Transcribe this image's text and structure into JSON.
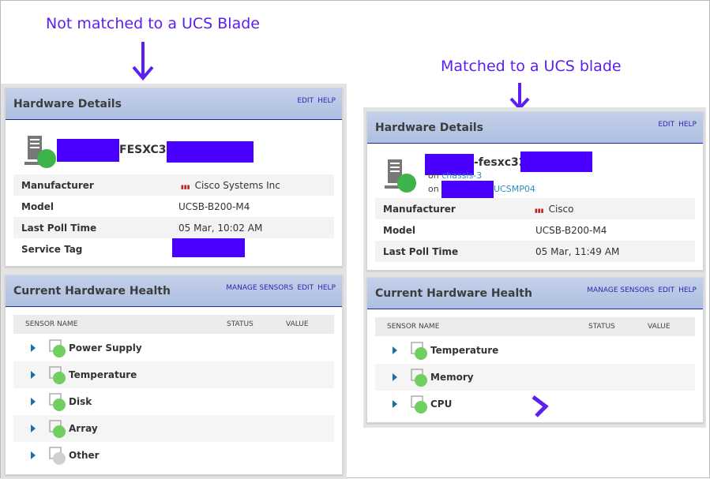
{
  "annotations": {
    "left": "Not matched to a UCS Blade",
    "right": "Matched to a UCS blade"
  },
  "colors": {
    "annotation": "#5b1ff0",
    "redaction": "#4a00ff",
    "status_up": "#3cb44b",
    "status_unknown": "#d0d0d0",
    "link": "#2a2ab0"
  },
  "left": {
    "details": {
      "title": "Hardware Details",
      "links": [
        "EDIT",
        "HELP"
      ],
      "node_name_visible": "FESXC31.",
      "rows": [
        {
          "label": "Manufacturer",
          "value": "Cisco Systems Inc",
          "icon": "cisco-logo-icon"
        },
        {
          "label": "Model",
          "value": "UCSB-B200-M4"
        },
        {
          "label": "Last Poll Time",
          "value": "05 Mar, 10:02 AM"
        },
        {
          "label": "Service Tag",
          "value": ""
        }
      ]
    },
    "health": {
      "title": "Current Hardware Health",
      "links": [
        "MANAGE SENSORS",
        "EDIT",
        "HELP"
      ],
      "columns": [
        "SENSOR NAME",
        "STATUS",
        "VALUE"
      ],
      "sensors": [
        {
          "name": "Power Supply",
          "icon": "power-supply-icon",
          "status": "up"
        },
        {
          "name": "Temperature",
          "icon": "thermometer-icon",
          "status": "up"
        },
        {
          "name": "Disk",
          "icon": "disk-icon",
          "status": "up"
        },
        {
          "name": "Array",
          "icon": "array-icon",
          "status": "up"
        },
        {
          "name": "Other",
          "icon": "heart-monitor-icon",
          "status": "unknown"
        }
      ]
    }
  },
  "right": {
    "details": {
      "title": "Hardware Details",
      "links": [
        "EDIT",
        "HELP"
      ],
      "node_name_visible": "-fesxc32",
      "on_prefix": "on",
      "chassis": "chassis-3",
      "manager_visible": "UCSMP04",
      "rows": [
        {
          "label": "Manufacturer",
          "value": "Cisco",
          "icon": "cisco-logo-icon"
        },
        {
          "label": "Model",
          "value": "UCSB-B200-M4"
        },
        {
          "label": "Last Poll Time",
          "value": "05 Mar, 11:49 AM"
        }
      ]
    },
    "health": {
      "title": "Current Hardware Health",
      "links": [
        "MANAGE SENSORS",
        "EDIT",
        "HELP"
      ],
      "columns": [
        "SENSOR NAME",
        "STATUS",
        "VALUE"
      ],
      "sensors": [
        {
          "name": "Temperature",
          "icon": "thermometer-icon",
          "status": "up"
        },
        {
          "name": "Memory",
          "icon": "memory-icon",
          "status": "up"
        },
        {
          "name": "CPU",
          "icon": "cpu-icon",
          "status": "up"
        }
      ]
    }
  }
}
